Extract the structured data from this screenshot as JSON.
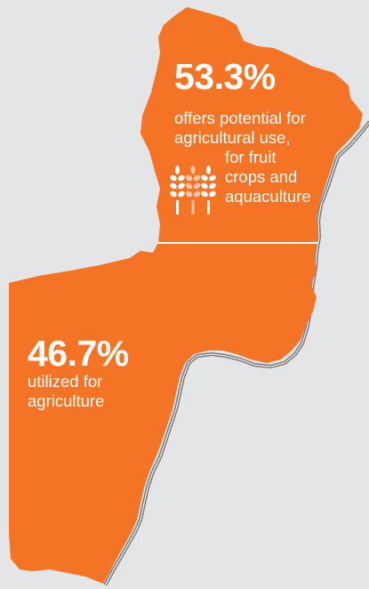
{
  "regions": {
    "upper": {
      "percent": "53.3%",
      "description_lines": [
        "offers potential for",
        "agricultural use,"
      ],
      "description_lines_2": [
        "for fruit",
        "crops and",
        "aquaculture"
      ],
      "icon": "wheat-icon"
    },
    "lower": {
      "percent": "46.7%",
      "description_lines": [
        "utilized for",
        "agriculture"
      ]
    }
  },
  "share": {
    "upper": 53.3,
    "lower": 46.7
  },
  "colors": {
    "background": "#e4e5e6",
    "region_fill": "#f47324",
    "divider": "#ffffff",
    "border_road": "#7c7c7c",
    "wheat_light": "#f9c7a8"
  }
}
